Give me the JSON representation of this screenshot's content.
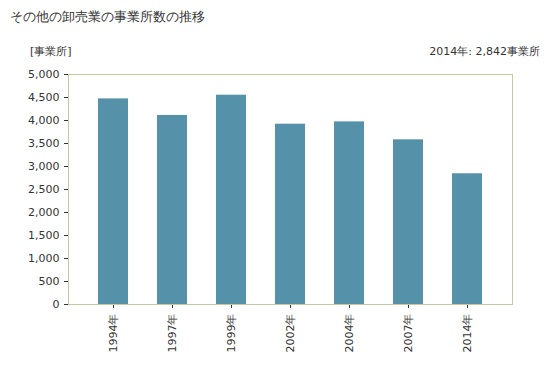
{
  "chart_data": {
    "type": "bar",
    "title": "その他の卸売業の事業所数の推移",
    "y_label": "[事業所]",
    "annotation": "2014年: 2,842事業所",
    "categories": [
      "1994年",
      "1997年",
      "1999年",
      "2002年",
      "2004年",
      "2007年",
      "2014年"
    ],
    "values": [
      4470,
      4110,
      4550,
      3920,
      3970,
      3580,
      2842
    ],
    "color": "#5591a8",
    "ylim": [
      0,
      5000
    ],
    "yticks": [
      0,
      500,
      {
        "value": 1000,
        "label": "1,000"
      },
      {
        "value": 1500,
        "label": "1,500"
      },
      {
        "value": 2000,
        "label": "2,000"
      },
      {
        "value": 2500,
        "label": "2,500"
      },
      {
        "value": 3000,
        "label": "3,000"
      },
      {
        "value": 3500,
        "label": "3,500"
      },
      {
        "value": 4000,
        "label": "4,000"
      },
      {
        "value": 4500,
        "label": "4,500"
      },
      {
        "value": 5000,
        "label": "5,000"
      }
    ],
    "grid": false
  }
}
